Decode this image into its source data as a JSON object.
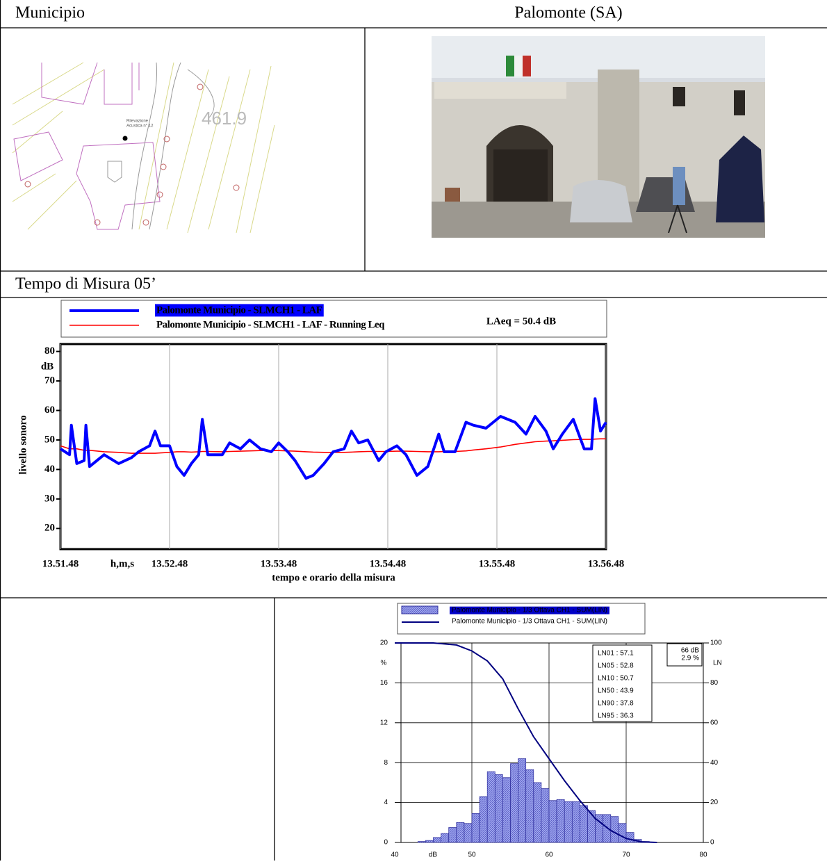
{
  "header": {
    "label": "Municipio",
    "value": "Palomonte (SA)"
  },
  "map": {
    "elevation": "461.9",
    "point_label": [
      "Rilevazione",
      "Acustica n° 12"
    ]
  },
  "section_title": "Tempo di Misura 05’",
  "chart_data": [
    {
      "type": "line",
      "annotation": "LAeq = 50.4 dB",
      "y_label": "livello sonoro",
      "y_unit": "dB",
      "x_unit": "h,m,s",
      "x_label": "tempo e orario della misura",
      "x": [
        0,
        5,
        6,
        9,
        13,
        14,
        16,
        24,
        32,
        39,
        43,
        49,
        52,
        55,
        60,
        64,
        68,
        72,
        76,
        78,
        81,
        89,
        93,
        99,
        104,
        110,
        116,
        120,
        125,
        129,
        135,
        139,
        145,
        150,
        156,
        160,
        164,
        169,
        175,
        179,
        185,
        190,
        196,
        202,
        208,
        211,
        217,
        223,
        227,
        234,
        242,
        250,
        256,
        261,
        267,
        271,
        276,
        282,
        288,
        292,
        294,
        297,
        300
      ],
      "xlim": [
        0,
        300
      ],
      "xticks": [
        {
          "value": 0,
          "label": "13.51.48"
        },
        {
          "value": 60,
          "label": "13.52.48"
        },
        {
          "value": 120,
          "label": "13.53.48"
        },
        {
          "value": 180,
          "label": "13.54.48"
        },
        {
          "value": 240,
          "label": "13.55.48"
        },
        {
          "value": 300,
          "label": "13.56.48"
        }
      ],
      "ylim": [
        13,
        82.5
      ],
      "yticks": [
        20,
        30,
        40,
        50,
        60,
        70,
        80
      ],
      "grid": "x",
      "series": [
        {
          "name": "Palomonte Municipio - SLMCH1 - LAF",
          "color": "#0000ff",
          "values": [
            47,
            45,
            55,
            42,
            43,
            55,
            41,
            45,
            42,
            44,
            46,
            48,
            53,
            48,
            48,
            41,
            38,
            42,
            45,
            57,
            45,
            45,
            49,
            47,
            50,
            47,
            46,
            49,
            46,
            43,
            37,
            38,
            42,
            46,
            47,
            53,
            49,
            50,
            43,
            46,
            48,
            45,
            38,
            41,
            52,
            46,
            46,
            56,
            55,
            54,
            58,
            56,
            52,
            58,
            53,
            47,
            52,
            57,
            47,
            47,
            64,
            53,
            56
          ]
        },
        {
          "name": "Palomonte Municipio - SLMCH1 - LAF - Running Leq",
          "color": "#ff0000",
          "values": [
            48,
            47,
            47,
            47,
            46.5,
            46.5,
            46.5,
            46,
            45.8,
            45.5,
            45.5,
            45.5,
            45.5,
            45.6,
            45.8,
            46,
            46,
            45.9,
            46,
            46.1,
            46.1,
            46,
            46.1,
            46.2,
            46.3,
            46.4,
            46.4,
            46.4,
            46.3,
            46.2,
            46,
            45.9,
            45.8,
            45.8,
            45.8,
            45.9,
            46,
            46.1,
            46.1,
            46.1,
            46.2,
            46.2,
            46.1,
            46,
            46,
            46.1,
            46.1,
            46.3,
            46.6,
            47,
            47.6,
            48.5,
            49,
            49.4,
            49.6,
            49.7,
            49.9,
            50.1,
            50.2,
            50.2,
            50.3,
            50.4,
            50.4
          ]
        }
      ]
    },
    {
      "type": "histogram",
      "x_unit": "dB",
      "y_unit": "%",
      "y2_label": "LN",
      "bins": [
        43,
        44,
        45,
        46,
        47,
        48,
        49,
        50,
        51,
        52,
        53,
        54,
        55,
        56,
        57,
        58,
        59,
        60,
        61,
        62,
        63,
        64,
        65,
        66,
        67,
        68,
        69,
        70,
        71,
        72,
        73
      ],
      "xlim": [
        40,
        80
      ],
      "xticks": [
        40,
        50,
        60,
        70,
        80
      ],
      "ylim": [
        0,
        20
      ],
      "yticks": [
        0,
        4,
        8,
        12,
        16,
        20
      ],
      "y2lim": [
        0,
        100
      ],
      "y2ticks": [
        0,
        20,
        40,
        60,
        80,
        100
      ],
      "grid": true,
      "series": [
        {
          "name": "Palomonte Municipio - 1/3 Ottava CH1 - SUM(LIN)",
          "color": "#9ea6ee",
          "values": [
            0.1,
            0.2,
            0.5,
            0.9,
            1.5,
            2.0,
            1.9,
            2.9,
            4.6,
            7.1,
            6.8,
            6.5,
            7.9,
            8.4,
            7.3,
            6.0,
            5.4,
            4.2,
            4.3,
            4.1,
            4.1,
            3.7,
            3.2,
            2.8,
            2.8,
            2.6,
            1.9,
            1.0,
            0.3,
            0.1
          ]
        },
        {
          "name": "Palomonte Municipio - 1/3 Ottava CH1 - SUM(LIN)",
          "color": "#000080",
          "axis": "y2",
          "x": [
            40,
            45,
            48,
            50,
            52,
            54,
            56,
            58,
            60,
            62,
            64,
            66,
            68,
            70,
            72,
            74
          ],
          "values": [
            100,
            100,
            99,
            96,
            91,
            82,
            67,
            53,
            42,
            31,
            21,
            12,
            6,
            2,
            0.3,
            0
          ]
        }
      ],
      "percentiles": [
        "LN01 : 57.1",
        "LN05 : 52.8",
        "LN10 : 50.7",
        "LN50 : 43.9",
        "LN90 : 37.8",
        "LN95 : 36.3"
      ],
      "cursor": [
        "66 dB",
        "2.9 %"
      ]
    }
  ]
}
